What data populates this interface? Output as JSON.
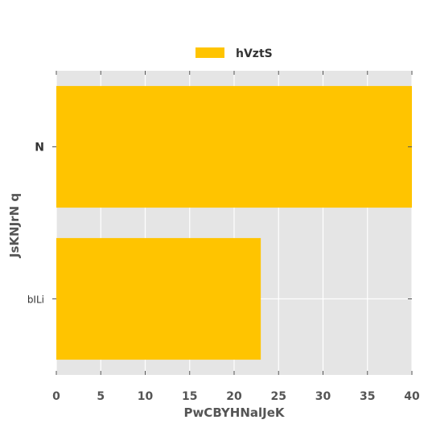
{
  "chart_data": {
    "type": "bar",
    "orientation": "horizontal",
    "categories": [
      "N",
      "bILi"
    ],
    "series": [
      {
        "name": "hVztS",
        "values": [
          40,
          23
        ],
        "color": "#ffc400"
      }
    ],
    "xlabel": "PwCBYHNalJeK",
    "ylabel": "JsKNJrN q",
    "xlim": [
      0,
      40
    ],
    "xticks": [
      0,
      5,
      10,
      15,
      20,
      25,
      30,
      35,
      40
    ],
    "grid": true,
    "legend": "top-center",
    "background": "#e5e5e5",
    "grid_color": "#ffffff"
  }
}
